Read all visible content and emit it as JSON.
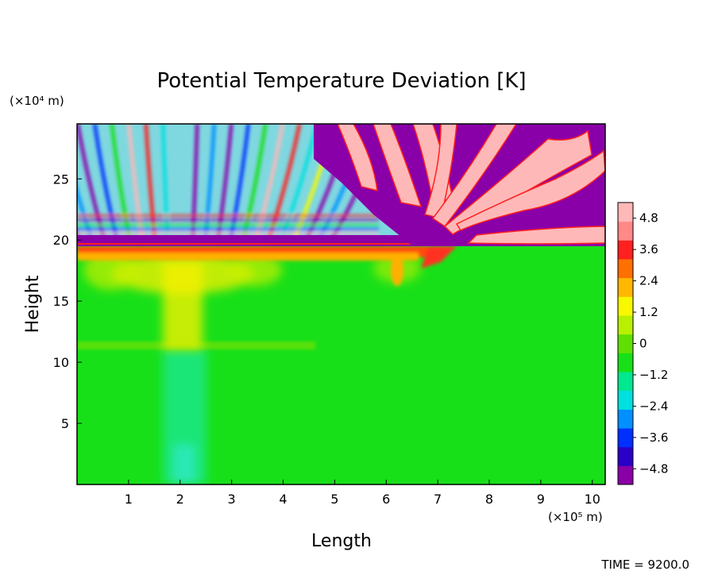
{
  "chart_data": {
    "type": "heatmap",
    "title": "Potential Temperature Deviation [K]",
    "xlabel": "Length",
    "ylabel": "Height",
    "x_unit": "(×10⁵ m)",
    "y_unit": "(×10⁴ m)",
    "xlim": [
      0,
      10.25
    ],
    "ylim": [
      0,
      29.5
    ],
    "x_ticks": [
      1,
      2,
      3,
      4,
      5,
      6,
      7,
      8,
      9,
      10
    ],
    "y_ticks": [
      5,
      10,
      15,
      20,
      25
    ],
    "colorbar": {
      "ticks": [
        "4.8",
        "3.6",
        "2.4",
        "1.2",
        "0",
        "−1.2",
        "−2.4",
        "−3.6",
        "−4.8"
      ],
      "tick_values": [
        4.8,
        3.6,
        2.4,
        1.2,
        0,
        -1.2,
        -2.4,
        -3.6,
        -4.8
      ],
      "range": [
        -5.4,
        5.4
      ],
      "colors": [
        "#8a00a8",
        "#2a00c8",
        "#0030ff",
        "#0090ff",
        "#00e0e0",
        "#00e890",
        "#18e018",
        "#60e000",
        "#b8f000",
        "#f8f800",
        "#ffb800",
        "#ff7000",
        "#ff2020",
        "#ff8888",
        "#ffb8b8"
      ]
    },
    "field_description": {
      "background_value": 0,
      "stratosphere_tongues": [
        {
          "x": 5.3,
          "y": 27.5,
          "value": 4.8
        },
        {
          "x": 6.2,
          "y": 26.0,
          "value": 4.8
        },
        {
          "x": 7.0,
          "y": 25.0,
          "value": 4.8
        },
        {
          "x": 8.2,
          "y": 23.5,
          "value": 4.8
        },
        {
          "x": 9.2,
          "y": 22.5,
          "value": 4.8
        }
      ],
      "tropopause_height": 20,
      "convective_center_x": 2.0
    },
    "footer": "TIME = 9200.0"
  }
}
